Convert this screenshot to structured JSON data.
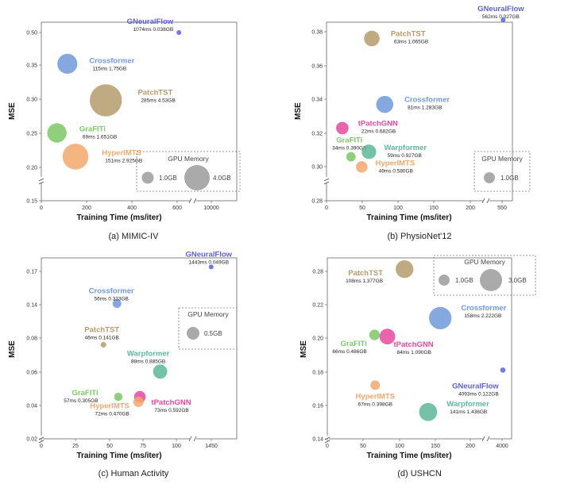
{
  "panels": [
    {
      "caption": "(a) MIMIC-IV",
      "x_label": "Training Time (ms/iter)",
      "y_label": "MSE",
      "x_ticks": [
        "0",
        "200",
        "400",
        "600",
        "10000"
      ],
      "y_ticks": [
        "0.15",
        "0.20",
        "0.25",
        "0.30",
        "0.35",
        "0.50"
      ],
      "memory_legend": {
        "title": "GPU Memory",
        "items": [
          "1.0GB",
          "4.0GB"
        ]
      },
      "models": [
        {
          "name": "GNeuralFlow",
          "stats": "1074ms 0.038GB",
          "color": "#5c5fe0",
          "time_ms": 1074,
          "mse": 0.5,
          "mem_gb": 0.038
        },
        {
          "name": "Crossformer",
          "stats": "115ms 1.75GB",
          "color": "#6f99db",
          "time_ms": 115,
          "mse": 0.356,
          "mem_gb": 1.75
        },
        {
          "name": "PatchTST",
          "stats": "285ms 4.53GB",
          "color": "#b59b6b",
          "time_ms": 285,
          "mse": 0.298,
          "mem_gb": 4.53
        },
        {
          "name": "GraFITi",
          "stats": "69ms 1.651GB",
          "color": "#7cc865",
          "time_ms": 69,
          "mse": 0.25,
          "mem_gb": 1.651
        },
        {
          "name": "HyperIMTS",
          "stats": "151ms 2.925GB",
          "color": "#f2a86a",
          "time_ms": 151,
          "mse": 0.215,
          "mem_gb": 2.925
        }
      ]
    },
    {
      "caption": "(b) PhysioNet'12",
      "x_label": "Training Time (ms/iter)",
      "y_label": "MSE",
      "x_ticks": [
        "0",
        "50",
        "100",
        "150",
        "200",
        "550"
      ],
      "y_ticks": [
        "0.28",
        "0.30",
        "0.32",
        "0.34",
        "0.36",
        "0.38"
      ],
      "memory_legend": {
        "title": "GPU Memory",
        "items": [
          "1.0GB"
        ]
      },
      "models": [
        {
          "name": "GNeuralFlow",
          "stats": "562ms 0.027GB",
          "color": "#5c5fe0",
          "time_ms": 562,
          "mse": 0.387,
          "mem_gb": 0.027
        },
        {
          "name": "PatchTST",
          "stats": "63ms 1.065GB",
          "color": "#b59b6b",
          "time_ms": 63,
          "mse": 0.376,
          "mem_gb": 1.065
        },
        {
          "name": "Crossformer",
          "stats": "81ms 1.283GB",
          "color": "#6f99db",
          "time_ms": 81,
          "mse": 0.337,
          "mem_gb": 1.283
        },
        {
          "name": "tPatchGNN",
          "stats": "22ms 0.682GB",
          "color": "#e8489d",
          "time_ms": 22,
          "mse": 0.323,
          "mem_gb": 0.682
        },
        {
          "name": "GraFITi",
          "stats": "34ms 0.390GB",
          "color": "#7cc865",
          "time_ms": 34,
          "mse": 0.306,
          "mem_gb": 0.39
        },
        {
          "name": "Warpformer",
          "stats": "59ms 0.927GB",
          "color": "#5cb999",
          "time_ms": 59,
          "mse": 0.309,
          "mem_gb": 0.927
        },
        {
          "name": "HyperIMTS",
          "stats": "49ms 0.580GB",
          "color": "#f2a86a",
          "time_ms": 49,
          "mse": 0.3,
          "mem_gb": 0.58
        }
      ]
    },
    {
      "caption": "(c) Human Activity",
      "x_label": "Training Time (ms/iter)",
      "y_label": "MSE",
      "x_ticks": [
        "0",
        "25",
        "50",
        "75",
        "100",
        "1450"
      ],
      "y_ticks": [
        "0.02",
        "0.04",
        "0.06",
        "0.08",
        "0.14",
        "0.17"
      ],
      "memory_legend": {
        "title": "GPU Memory",
        "items": [
          "0.5GB"
        ]
      },
      "models": [
        {
          "name": "GNeuralFlow",
          "stats": "1443ms 0.049GB",
          "color": "#5c5fe0",
          "time_ms": 1443,
          "mse": 0.174,
          "mem_gb": 0.049
        },
        {
          "name": "Crossformer",
          "stats": "56ms 0.333GB",
          "color": "#6f99db",
          "time_ms": 56,
          "mse": 0.141,
          "mem_gb": 0.333
        },
        {
          "name": "PatchTST",
          "stats": "46ms 0.141GB",
          "color": "#b59b6b",
          "time_ms": 46,
          "mse": 0.076,
          "mem_gb": 0.141
        },
        {
          "name": "Warpformer",
          "stats": "88ms 0.885GB",
          "color": "#5cb999",
          "time_ms": 88,
          "mse": 0.06,
          "mem_gb": 0.885
        },
        {
          "name": "GraFITi",
          "stats": "57ms 0.305GB",
          "color": "#7cc865",
          "time_ms": 57,
          "mse": 0.045,
          "mem_gb": 0.305
        },
        {
          "name": "tPatchGNN",
          "stats": "73ms 0.592GB",
          "color": "#e8489d",
          "time_ms": 73,
          "mse": 0.045,
          "mem_gb": 0.592
        },
        {
          "name": "HyperIMTS",
          "stats": "72ms 0.470GB",
          "color": "#f2a86a",
          "time_ms": 72,
          "mse": 0.042,
          "mem_gb": 0.47
        }
      ]
    },
    {
      "caption": "(d) USHCN",
      "x_label": "Training Time (ms/iter)",
      "y_label": "MSE",
      "x_ticks": [
        "0",
        "50",
        "100",
        "150",
        "200",
        "4000"
      ],
      "y_ticks": [
        "0.14",
        "0.16",
        "0.18",
        "0.20",
        "0.22",
        "0.28"
      ],
      "memory_legend": {
        "title": "GPU Memory",
        "items": [
          "1.0GB",
          "3.0GB"
        ]
      },
      "models": [
        {
          "name": "PatchTST",
          "stats": "108ms 1.377GB",
          "color": "#b59b6b",
          "time_ms": 108,
          "mse": 0.284,
          "mem_gb": 1.377
        },
        {
          "name": "Crossformer",
          "stats": "158ms 2.222GB",
          "color": "#6f99db",
          "time_ms": 158,
          "mse": 0.212,
          "mem_gb": 2.222
        },
        {
          "name": "GraFITi",
          "stats": "66ms 0.486GB",
          "color": "#7cc865",
          "time_ms": 66,
          "mse": 0.202,
          "mem_gb": 0.486
        },
        {
          "name": "tPatchGNN",
          "stats": "84ms 1.090GB",
          "color": "#e8489d",
          "time_ms": 84,
          "mse": 0.201,
          "mem_gb": 1.09
        },
        {
          "name": "GNeuralFlow",
          "stats": "4093ms 0.122GB",
          "color": "#5c5fe0",
          "time_ms": 4093,
          "mse": 0.181,
          "mem_gb": 0.122
        },
        {
          "name": "HyperIMTS",
          "stats": "67ms 0.398GB",
          "color": "#f2a86a",
          "time_ms": 67,
          "mse": 0.172,
          "mem_gb": 0.398
        },
        {
          "name": "Warpformer",
          "stats": "141ms 1.436GB",
          "color": "#5cb999",
          "time_ms": 141,
          "mse": 0.156,
          "mem_gb": 1.436
        }
      ]
    }
  ],
  "chart_data": [
    {
      "type": "scatter",
      "title": "(a) MIMIC-IV",
      "xlabel": "Training Time (ms/iter)",
      "ylabel": "MSE",
      "x": [
        1074,
        115,
        285,
        69,
        151
      ],
      "y": [
        0.5,
        0.356,
        0.298,
        0.25,
        0.215
      ],
      "size_gb": [
        0.038,
        1.75,
        4.53,
        1.651,
        2.925
      ],
      "labels": [
        "GNeuralFlow",
        "Crossformer",
        "PatchTST",
        "GraFITi",
        "HyperIMTS"
      ]
    },
    {
      "type": "scatter",
      "title": "(b) PhysioNet'12",
      "xlabel": "Training Time (ms/iter)",
      "ylabel": "MSE",
      "x": [
        562,
        63,
        81,
        22,
        34,
        59,
        49
      ],
      "y": [
        0.387,
        0.376,
        0.337,
        0.323,
        0.306,
        0.309,
        0.3
      ],
      "size_gb": [
        0.027,
        1.065,
        1.283,
        0.682,
        0.39,
        0.927,
        0.58
      ],
      "labels": [
        "GNeuralFlow",
        "PatchTST",
        "Crossformer",
        "tPatchGNN",
        "GraFITi",
        "Warpformer",
        "HyperIMTS"
      ]
    },
    {
      "type": "scatter",
      "title": "(c) Human Activity",
      "xlabel": "Training Time (ms/iter)",
      "ylabel": "MSE",
      "x": [
        1443,
        56,
        46,
        88,
        57,
        73,
        72
      ],
      "y": [
        0.174,
        0.141,
        0.076,
        0.06,
        0.045,
        0.045,
        0.042
      ],
      "size_gb": [
        0.049,
        0.333,
        0.141,
        0.885,
        0.305,
        0.592,
        0.47
      ],
      "labels": [
        "GNeuralFlow",
        "Crossformer",
        "PatchTST",
        "Warpformer",
        "GraFITi",
        "tPatchGNN",
        "HyperIMTS"
      ]
    },
    {
      "type": "scatter",
      "title": "(d) USHCN",
      "xlabel": "Training Time (ms/iter)",
      "ylabel": "MSE",
      "x": [
        108,
        158,
        66,
        84,
        4093,
        67,
        141
      ],
      "y": [
        0.284,
        0.212,
        0.202,
        0.201,
        0.181,
        0.172,
        0.156
      ],
      "size_gb": [
        1.377,
        2.222,
        0.486,
        1.09,
        0.122,
        0.398,
        1.436
      ],
      "labels": [
        "PatchTST",
        "Crossformer",
        "GraFITi",
        "tPatchGNN",
        "GNeuralFlow",
        "HyperIMTS",
        "Warpformer"
      ]
    }
  ]
}
